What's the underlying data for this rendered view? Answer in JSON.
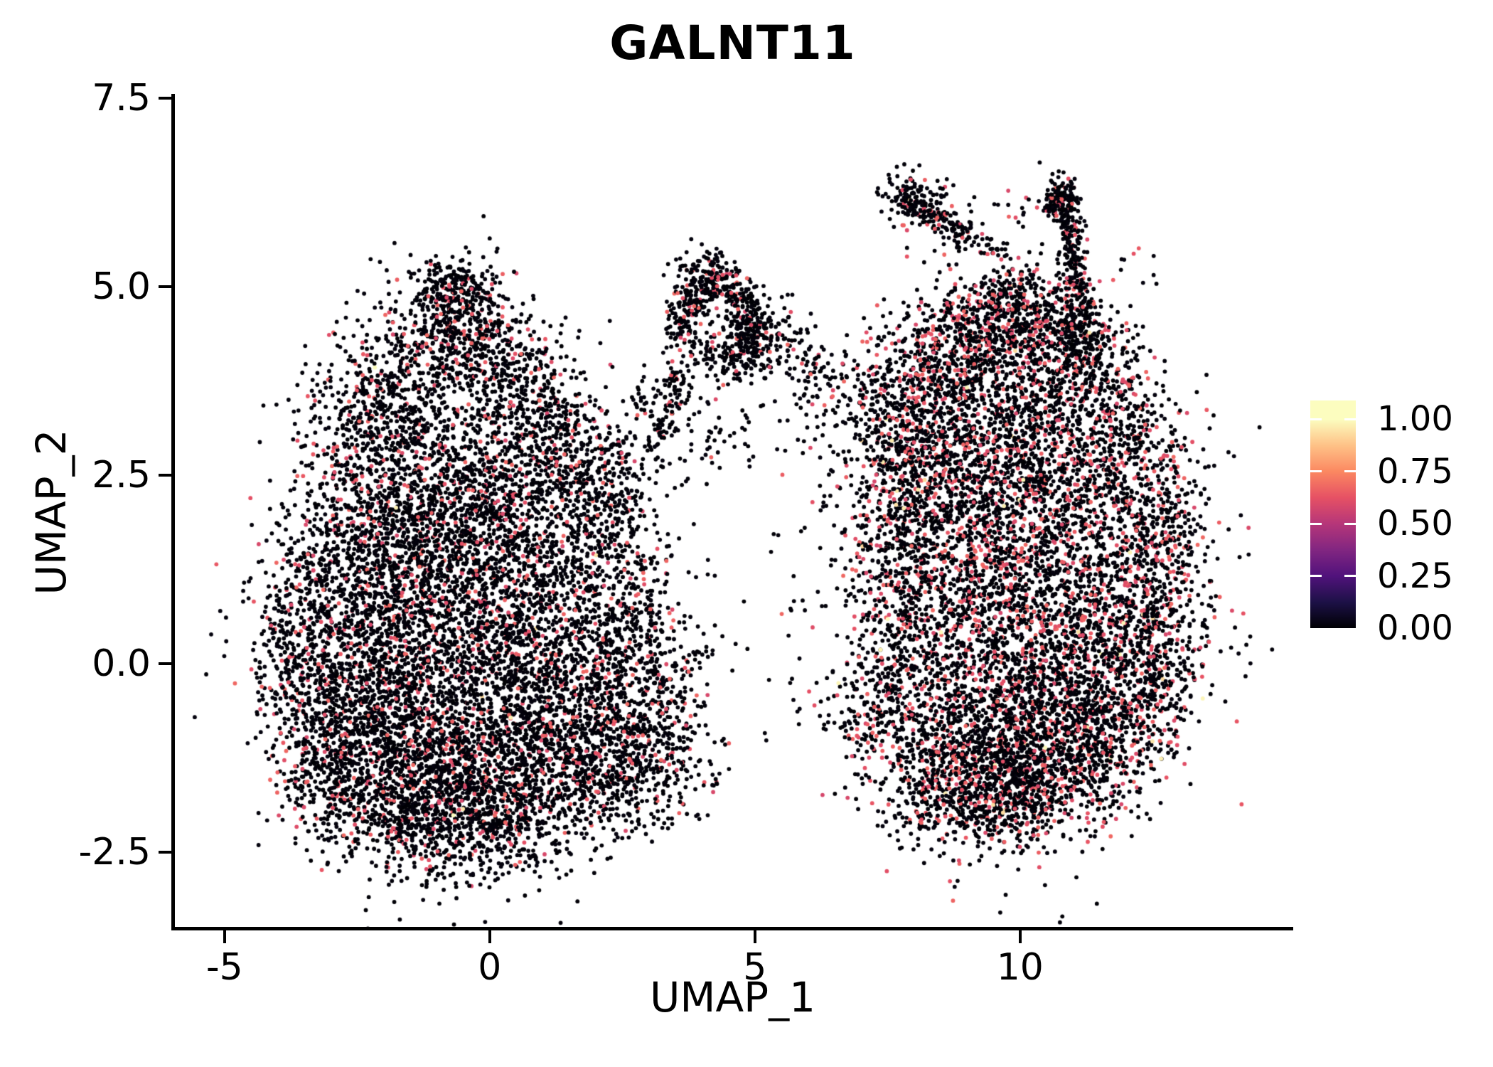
{
  "title": "GALNT11",
  "axes": {
    "x_label": "UMAP_1",
    "y_label": "UMAP_2",
    "x_ticks": [
      "-5",
      "0",
      "5",
      "10"
    ],
    "y_ticks": [
      "7.5",
      "5.0",
      "2.5",
      "0.0",
      "-2.5"
    ]
  },
  "legend": {
    "labels": [
      "1.00",
      "0.75",
      "0.50",
      "0.25",
      "0.00"
    ],
    "values": [
      1.0,
      0.75,
      0.5,
      0.25,
      0.0
    ],
    "vmax": 1.09,
    "tick_color": "#ffffff",
    "gradient": [
      {
        "v": 0.0,
        "c": "#000004"
      },
      {
        "v": 0.125,
        "c": "#1D1147"
      },
      {
        "v": 0.25,
        "c": "#51127C"
      },
      {
        "v": 0.375,
        "c": "#822681"
      },
      {
        "v": 0.5,
        "c": "#B63679"
      },
      {
        "v": 0.625,
        "c": "#E65164"
      },
      {
        "v": 0.75,
        "c": "#FB8861"
      },
      {
        "v": 0.875,
        "c": "#FEC287"
      },
      {
        "v": 1.0,
        "c": "#FCFDBF"
      }
    ]
  },
  "chart_data": {
    "type": "scatter",
    "title": "GALNT11",
    "xlabel": "UMAP_1",
    "ylabel": "UMAP_2",
    "xlim": [
      -5.95,
      15.11
    ],
    "ylim": [
      -3.52,
      7.56
    ],
    "x_ticks": [
      -5,
      0,
      5,
      10
    ],
    "y_ticks": [
      7.5,
      5.0,
      2.5,
      0.0,
      -2.5
    ],
    "grid": false,
    "legend_position": "right",
    "colorbar": {
      "min": 0.0,
      "max": 1.0,
      "ticks": [
        1.0,
        0.75,
        0.5,
        0.25,
        0.0
      ]
    },
    "point_radius": 2.9,
    "seed": 7,
    "value_sampling": {
      "zero": [
        0.0,
        0.02
      ],
      "mid": [
        0.58,
        0.68
      ],
      "high": [
        0.92,
        1.0
      ]
    },
    "clusters": [
      {
        "name": "left-lobe",
        "p_mid": 0.115,
        "p_high": 0.0012,
        "blobs": [
          {
            "t": "g",
            "p": [
              -1.0,
              0.8,
              1.35,
              1.2,
              1400
            ]
          },
          {
            "t": "g",
            "p": [
              -2.2,
              0.3,
              0.85,
              1.0,
              800
            ]
          },
          {
            "t": "g",
            "p": [
              0.2,
              1.0,
              0.95,
              0.95,
              750
            ]
          },
          {
            "t": "g",
            "p": [
              -1.3,
              -1.35,
              1.0,
              0.65,
              900
            ]
          },
          {
            "t": "g",
            "p": [
              -0.2,
              -1.75,
              0.85,
              0.5,
              650
            ]
          },
          {
            "t": "g",
            "p": [
              -2.6,
              -0.9,
              0.7,
              0.65,
              450
            ]
          },
          {
            "t": "g",
            "p": [
              0.9,
              -0.6,
              0.85,
              0.7,
              450
            ]
          },
          {
            "t": "g",
            "p": [
              -0.9,
              2.3,
              1.0,
              0.75,
              650
            ]
          },
          {
            "t": "g",
            "p": [
              -2.4,
              1.9,
              0.75,
              0.65,
              380
            ]
          },
          {
            "t": "g",
            "p": [
              0.5,
              2.3,
              0.8,
              0.65,
              360
            ]
          },
          {
            "t": "g",
            "p": [
              -3.5,
              0.3,
              0.5,
              0.9,
              260
            ]
          },
          {
            "t": "g",
            "p": [
              -3.9,
              -0.1,
              0.28,
              0.5,
              90
            ]
          },
          {
            "t": "g",
            "p": [
              -3.0,
              -1.6,
              0.5,
              0.4,
              160
            ]
          },
          {
            "t": "g",
            "p": [
              -1.5,
              -2.1,
              0.5,
              0.28,
              160
            ]
          },
          {
            "t": "g",
            "p": [
              0.1,
              -2.2,
              0.55,
              0.3,
              150
            ]
          },
          {
            "t": "g",
            "p": [
              1.3,
              -1.3,
              0.6,
              0.5,
              250
            ]
          },
          {
            "t": "g",
            "p": [
              2.2,
              -0.8,
              0.65,
              0.6,
              350
            ]
          },
          {
            "t": "g",
            "p": [
              3.1,
              -0.5,
              0.5,
              0.55,
              250
            ]
          },
          {
            "t": "g",
            "p": [
              3.2,
              -1.35,
              0.45,
              0.38,
              150
            ]
          },
          {
            "t": "g",
            "p": [
              2.2,
              -1.7,
              0.5,
              0.35,
              180
            ]
          },
          {
            "t": "g",
            "p": [
              1.6,
              0.3,
              0.8,
              0.8,
              400
            ]
          },
          {
            "t": "g",
            "p": [
              2.6,
              0.7,
              0.5,
              0.6,
              240
            ]
          },
          {
            "t": "g",
            "p": [
              1.9,
              1.8,
              0.6,
              0.55,
              250
            ]
          },
          {
            "t": "g",
            "p": [
              -0.6,
              4.6,
              0.55,
              0.42,
              330
            ]
          },
          {
            "t": "g",
            "p": [
              -0.7,
              5.0,
              0.33,
              0.18,
              130
            ]
          },
          {
            "t": "g",
            "p": [
              -1.5,
              3.9,
              0.6,
              0.5,
              290
            ]
          },
          {
            "t": "g",
            "p": [
              0.0,
              4.1,
              0.5,
              0.4,
              240
            ]
          },
          {
            "t": "g",
            "p": [
              -2.3,
              3.3,
              0.6,
              0.5,
              270
            ]
          },
          {
            "t": "g",
            "p": [
              0.8,
              3.5,
              0.55,
              0.45,
              220
            ]
          },
          {
            "t": "g",
            "p": [
              1.6,
              2.9,
              0.5,
              0.4,
              170
            ]
          },
          {
            "t": "g",
            "p": [
              2.2,
              2.4,
              0.42,
              0.38,
              120
            ]
          }
        ]
      },
      {
        "name": "middle-loop",
        "p_mid": 0.09,
        "p_high": 0.001,
        "blobs": [
          {
            "t": "r",
            "p": [
              4.3,
              4.5,
              0.52,
              0.14,
              1.3,
              0,
              360,
              300
            ]
          },
          {
            "t": "r",
            "p": [
              4.3,
              4.5,
              0.5,
              0.12,
              1.3,
              -40,
              200,
              170
            ]
          },
          {
            "t": "g",
            "p": [
              4.1,
              5.2,
              0.32,
              0.15,
              110
            ]
          },
          {
            "t": "g",
            "p": [
              5.0,
              4.3,
              0.38,
              0.3,
              150
            ]
          },
          {
            "t": "s",
            "p": [
              3.7,
              3.9,
              3.05,
              2.75,
              0.13,
              90
            ]
          },
          {
            "t": "g",
            "p": [
              4.1,
              3.1,
              0.5,
              0.4,
              60
            ]
          },
          {
            "t": "s",
            "p": [
              5.35,
              4.3,
              6.6,
              3.85,
              0.2,
              80
            ]
          },
          {
            "t": "g",
            "p": [
              6.0,
              3.6,
              0.45,
              0.35,
              40
            ]
          },
          {
            "t": "s",
            "p": [
              2.75,
              3.35,
              3.5,
              3.85,
              0.13,
              40
            ]
          }
        ]
      },
      {
        "name": "right-lobe",
        "p_mid": 0.19,
        "p_high": 0.0045,
        "blobs": [
          {
            "t": "g",
            "p": [
              9.8,
              1.6,
              1.4,
              1.3,
              1300
            ]
          },
          {
            "t": "g",
            "p": [
              11.1,
              1.0,
              1.15,
              1.15,
              850
            ]
          },
          {
            "t": "g",
            "p": [
              8.6,
              0.6,
              1.0,
              1.1,
              750
            ]
          },
          {
            "t": "g",
            "p": [
              9.3,
              2.9,
              1.05,
              0.85,
              750
            ]
          },
          {
            "t": "g",
            "p": [
              10.8,
              3.0,
              0.95,
              0.75,
              650
            ]
          },
          {
            "t": "g",
            "p": [
              10.1,
              -0.6,
              1.05,
              0.8,
              700
            ]
          },
          {
            "t": "g",
            "p": [
              9.0,
              -1.2,
              0.85,
              0.55,
              450
            ]
          },
          {
            "t": "g",
            "p": [
              11.5,
              -0.6,
              0.75,
              0.7,
              400
            ]
          },
          {
            "t": "g",
            "p": [
              12.3,
              0.9,
              0.55,
              0.85,
              330
            ]
          },
          {
            "t": "g",
            "p": [
              9.3,
              4.35,
              0.7,
              0.4,
              380
            ]
          },
          {
            "t": "g",
            "p": [
              10.3,
              4.6,
              0.55,
              0.33,
              300
            ]
          },
          {
            "t": "g",
            "p": [
              11.2,
              4.2,
              0.5,
              0.4,
              260
            ]
          },
          {
            "t": "g",
            "p": [
              8.5,
              3.9,
              0.55,
              0.45,
              290
            ]
          },
          {
            "t": "g",
            "p": [
              7.6,
              3.3,
              0.5,
              0.5,
              220
            ]
          },
          {
            "t": "g",
            "p": [
              7.5,
              1.6,
              0.5,
              0.95,
              300
            ]
          },
          {
            "t": "g",
            "p": [
              7.7,
              -0.4,
              0.55,
              0.65,
              260
            ]
          },
          {
            "t": "g",
            "p": [
              9.2,
              -1.5,
              0.75,
              0.4,
              380
            ]
          },
          {
            "t": "g",
            "p": [
              10.3,
              -1.5,
              0.75,
              0.38,
              340
            ]
          },
          {
            "t": "g",
            "p": [
              9.8,
              -1.95,
              0.5,
              0.22,
              130
            ]
          },
          {
            "t": "g",
            "p": [
              11.4,
              -1.15,
              0.55,
              0.4,
              220
            ]
          },
          {
            "t": "g",
            "p": [
              12.6,
              0.2,
              0.4,
              0.5,
              140
            ]
          },
          {
            "t": "g",
            "p": [
              12.8,
              1.8,
              0.38,
              0.48,
              130
            ]
          },
          {
            "t": "g",
            "p": [
              9.6,
              4.9,
              0.35,
              0.18,
              90
            ]
          },
          {
            "t": "g",
            "p": [
              8.1,
              2.6,
              0.5,
              0.5,
              240
            ]
          },
          {
            "t": "g",
            "p": [
              12.2,
              2.9,
              0.5,
              0.45,
              190
            ]
          },
          {
            "t": "g",
            "p": [
              12.4,
              -0.4,
              0.4,
              0.4,
              120
            ]
          },
          {
            "t": "g",
            "p": [
              6.95,
              -0.8,
              0.3,
              0.3,
              60
            ]
          },
          {
            "t": "g",
            "p": [
              8.3,
              -1.9,
              0.4,
              0.25,
              90
            ]
          }
        ]
      },
      {
        "name": "top-right-arms",
        "p_mid": 0.12,
        "p_high": 0.003,
        "blobs": [
          {
            "t": "g",
            "p": [
              8.05,
              6.18,
              0.3,
              0.17,
              100
            ]
          },
          {
            "t": "s",
            "p": [
              7.7,
              6.25,
              9.1,
              5.62,
              0.1,
              160
            ]
          },
          {
            "t": "s",
            "p": [
              9.1,
              5.62,
              9.7,
              5.42,
              0.09,
              26
            ]
          },
          {
            "t": "g",
            "p": [
              9.9,
              6.0,
              0.5,
              0.3,
              26
            ]
          },
          {
            "t": "g",
            "p": [
              10.82,
              6.22,
              0.18,
              0.13,
              70
            ]
          },
          {
            "t": "s",
            "p": [
              10.78,
              6.25,
              11.1,
              5.0,
              0.12,
              230
            ]
          },
          {
            "t": "s",
            "p": [
              11.1,
              5.0,
              11.05,
              4.1,
              0.16,
              80
            ]
          },
          {
            "t": "s",
            "p": [
              10.5,
              6.02,
              10.8,
              6.27,
              0.08,
              36
            ]
          },
          {
            "t": "g",
            "p": [
              8.6,
              5.55,
              0.35,
              0.2,
              10
            ]
          },
          {
            "t": "g",
            "p": [
              12.1,
              5.2,
              0.3,
              0.3,
              8
            ]
          }
        ]
      },
      {
        "name": "gap-strays",
        "p_mid": 0.12,
        "p_high": 0.0,
        "blobs": [
          {
            "t": "g",
            "p": [
              5.4,
              0.7,
              0.7,
              1.3,
              16
            ]
          },
          {
            "t": "g",
            "p": [
              4.0,
              -0.1,
              0.45,
              0.8,
              22
            ]
          },
          {
            "t": "g",
            "p": [
              6.3,
              2.6,
              0.4,
              0.7,
              12
            ]
          }
        ]
      }
    ]
  }
}
